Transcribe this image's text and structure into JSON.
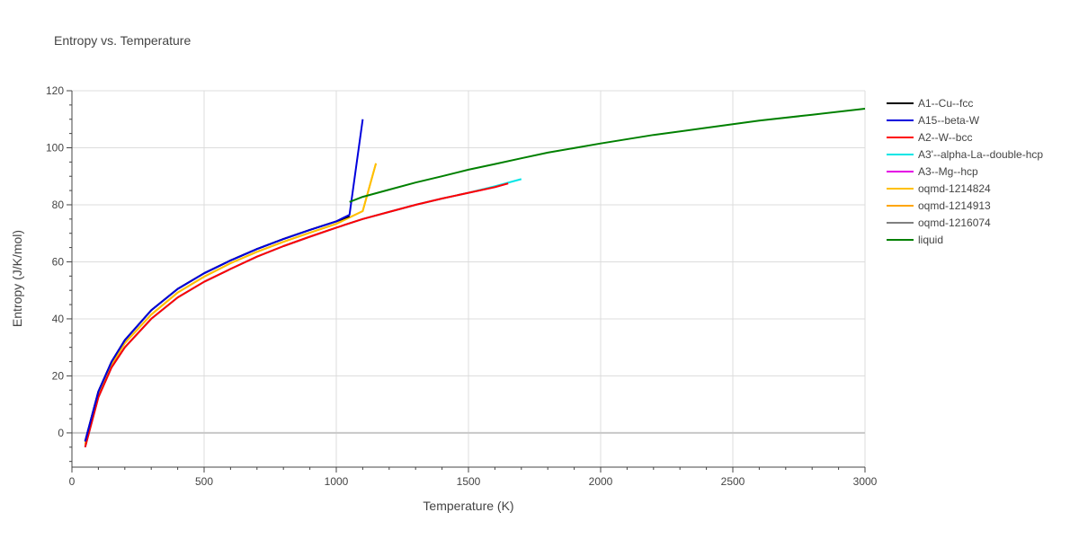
{
  "chart_data": {
    "type": "line",
    "title": "Entropy vs. Temperature",
    "xlabel": "Temperature (K)",
    "ylabel": "Entropy (J/K/mol)",
    "xlim": [
      0,
      3000
    ],
    "ylim": [
      -12,
      120
    ],
    "x_ticks": [
      0,
      500,
      1000,
      1500,
      2000,
      2500,
      3000
    ],
    "y_ticks": [
      0,
      20,
      40,
      60,
      80,
      100,
      120
    ],
    "grid": true,
    "legend_position": "right",
    "series": [
      {
        "name": "A1--Cu--fcc",
        "color": "#000000",
        "x": [
          50,
          100,
          150,
          200,
          300,
          400,
          500,
          600,
          700,
          800,
          900,
          1000,
          1050
        ],
        "y": [
          -3,
          14.5,
          25,
          32.5,
          43,
          50.5,
          56,
          60.5,
          64.5,
          68,
          71.2,
          74.2,
          76
        ]
      },
      {
        "name": "A15--beta-W",
        "color": "#0000dd",
        "x": [
          50,
          100,
          150,
          200,
          300,
          400,
          500,
          600,
          700,
          800,
          900,
          1000,
          1050,
          1100
        ],
        "y": [
          -3,
          14.5,
          25,
          32.5,
          43,
          50.5,
          56,
          60.5,
          64.5,
          68,
          71.2,
          74.2,
          76.5,
          110
        ]
      },
      {
        "name": "A2--W--bcc",
        "color": "#ff0000",
        "x": [
          50,
          100,
          150,
          200,
          300,
          400,
          500,
          600,
          700,
          800,
          900,
          1000,
          1100,
          1200,
          1300,
          1400,
          1500,
          1600,
          1650
        ],
        "y": [
          -5,
          12.5,
          23,
          30,
          40,
          47.5,
          53,
          57.5,
          61.8,
          65.5,
          68.8,
          72,
          75,
          77.5,
          80,
          82.2,
          84.2,
          86.2,
          87.5
        ]
      },
      {
        "name": "A3'--alpha-La--double-hcp",
        "color": "#00e5e5",
        "x": [
          50,
          100,
          150,
          200,
          300,
          400,
          500,
          600,
          700,
          800,
          900,
          1000,
          1100,
          1200,
          1300,
          1400,
          1500,
          1600,
          1700
        ],
        "y": [
          -5,
          12.5,
          23,
          30,
          40,
          47.5,
          53,
          57.5,
          61.8,
          65.5,
          68.8,
          72,
          75,
          77.5,
          80,
          82.2,
          84.2,
          86.5,
          89
        ]
      },
      {
        "name": "A3--Mg--hcp",
        "color": "#e400e4",
        "x": [
          50,
          100,
          150,
          200,
          300,
          400,
          500,
          600,
          700,
          800,
          900,
          1000,
          1100,
          1200,
          1300,
          1400,
          1500,
          1600,
          1650
        ],
        "y": [
          -5,
          12.5,
          23,
          30,
          40,
          47.5,
          53,
          57.5,
          61.8,
          65.5,
          68.8,
          72,
          75,
          77.5,
          80,
          82.2,
          84.2,
          86.2,
          87.5
        ]
      },
      {
        "name": "oqmd-1214824",
        "color": "#ffc000",
        "x": [
          50,
          100,
          150,
          200,
          300,
          400,
          500,
          600,
          700,
          800,
          900,
          1000,
          1100,
          1150
        ],
        "y": [
          -4,
          13.5,
          24,
          31.5,
          41.5,
          49.2,
          54.8,
          59.5,
          63.5,
          67,
          70.2,
          73.3,
          77.8,
          94.5
        ]
      },
      {
        "name": "oqmd-1214913",
        "color": "#ffa500",
        "x": [
          50,
          100,
          150,
          200,
          300,
          400,
          500,
          600,
          700,
          800,
          900,
          1000,
          1100,
          1150
        ],
        "y": [
          -4,
          13.5,
          24,
          31.5,
          41.5,
          49.2,
          54.8,
          59.5,
          63.5,
          67,
          70.2,
          73.3,
          77.8,
          94.5
        ]
      },
      {
        "name": "oqmd-1216074",
        "color": "#808080",
        "x": [
          50,
          100,
          150,
          200,
          300,
          400,
          500,
          600,
          700,
          800,
          900,
          1000,
          1050
        ],
        "y": [
          -3,
          14.5,
          25,
          32.5,
          43,
          50.5,
          56,
          60.5,
          64.5,
          68,
          71.2,
          74.2,
          76
        ]
      },
      {
        "name": "liquid",
        "color": "#008000",
        "x": [
          1050,
          1100,
          1200,
          1300,
          1400,
          1500,
          1600,
          1700,
          1800,
          2000,
          2200,
          2400,
          2600,
          2800,
          3000
        ],
        "y": [
          81,
          82.8,
          85.3,
          87.8,
          90,
          92.3,
          94.3,
          96.3,
          98.3,
          101.5,
          104.5,
          107,
          109.5,
          111.6,
          113.7
        ]
      }
    ]
  }
}
